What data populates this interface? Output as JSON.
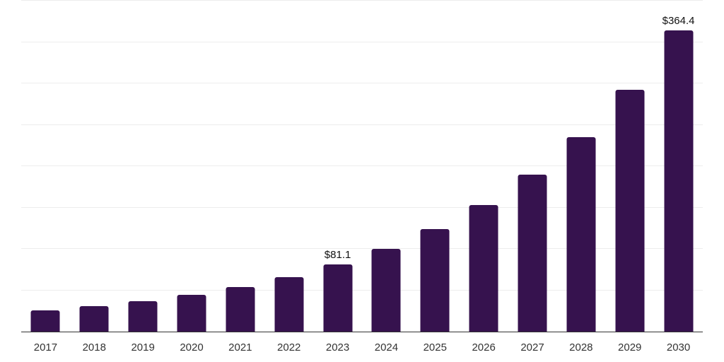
{
  "chart_data": {
    "type": "bar",
    "title": "",
    "xlabel": "",
    "ylabel": "",
    "categories": [
      "2017",
      "2018",
      "2019",
      "2020",
      "2021",
      "2022",
      "2023",
      "2024",
      "2025",
      "2026",
      "2027",
      "2028",
      "2029",
      "2030"
    ],
    "values": [
      25.3,
      31.0,
      36.4,
      44.1,
      53.5,
      65.4,
      81.1,
      100.0,
      123.6,
      152.6,
      189.4,
      235.0,
      292.4,
      364.4
    ],
    "labeled_points": [
      {
        "category": "2023",
        "label": "$81.1"
      },
      {
        "category": "2030",
        "label": "$364.4"
      }
    ],
    "ylim": [
      0,
      400
    ],
    "gridline_step": 50,
    "grid": "horizontal-only",
    "legend_position": "none",
    "y_tick_labels_visible": false,
    "colors": {
      "bar": "#36124E",
      "axis_line": "#333333",
      "gridline": "#ededed",
      "x_tick_label": "#333333",
      "value_label": "#111111",
      "background": "#ffffff"
    }
  }
}
